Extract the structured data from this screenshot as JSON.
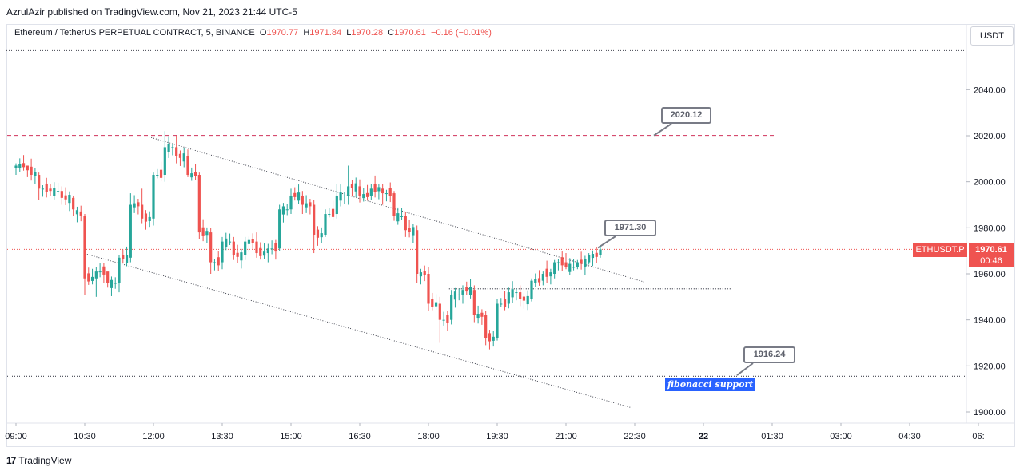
{
  "header": {
    "published_line": "AzrulAzir published on TradingView.com, Nov 21, 2023 21:44 UTC-5"
  },
  "legend": {
    "symbol": "Ethereum / TetherUS PERPETUAL CONTRACT, 5, BINANCE",
    "open_label": "O",
    "open": "1970.77",
    "high_label": "H",
    "high": "1971.84",
    "low_label": "L",
    "low": "1970.28",
    "close_label": "C",
    "close": "1970.61",
    "change": "−0.16 (−0.01%)"
  },
  "currency": "USDT",
  "price_tag": {
    "symbol": "ETHUSDT.P",
    "price": "1970.61",
    "timer": "00:46"
  },
  "annotations": {
    "callout_top": "2020.12",
    "callout_mid": "1971.30",
    "callout_bottom": "1916.24",
    "fib_label": "fibonacci support"
  },
  "footer": {
    "brand": "TradingView",
    "logo_glyph": "17"
  },
  "colors": {
    "up": "#26a69a",
    "down": "#ef5350",
    "resistance": "#d0335b",
    "trend": "#434651",
    "fib_bg": "#2962ff"
  },
  "chart_data": {
    "type": "candlestick",
    "yticks": [
      2040,
      2020,
      2000,
      1980,
      1960,
      1940,
      1920,
      1900
    ],
    "ylim": [
      1896,
      2058
    ],
    "xticks": [
      "09:00",
      "10:30",
      "12:00",
      "13:30",
      "15:00",
      "16:30",
      "18:00",
      "19:30",
      "21:00",
      "22:30",
      "22",
      "01:30",
      "03:00",
      "04:30",
      "06:"
    ],
    "x_range_hours": [
      9,
      30.5
    ],
    "last_price": 1970.61,
    "horizontal_lines": [
      {
        "name": "resistance",
        "value": 2020.12,
        "style": "dashed"
      },
      {
        "name": "current",
        "value": 1970.61,
        "style": "dotted"
      },
      {
        "name": "top",
        "value": 2057,
        "style": "dotted"
      },
      {
        "name": "fibonacci support",
        "value": 1915.5,
        "style": "dotted"
      },
      {
        "name": "mid support",
        "value": 1953.5,
        "style": "dotted"
      }
    ],
    "trendlines": [
      {
        "from": [
          11.9,
          2019.5
        ],
        "to": [
          22.7,
          1956.5
        ]
      },
      {
        "from": [
          10.55,
          1968.5
        ],
        "to": [
          22.4,
          1902
        ]
      }
    ],
    "candles": [
      [
        9.0,
        2006,
        2008,
        2003,
        2007
      ],
      [
        9.25,
        2007,
        2006,
        2002,
        2005
      ],
      [
        9.5,
        2003,
        2004,
        1992,
        1997
      ],
      [
        9.75,
        1997,
        1999,
        1994,
        1996
      ],
      [
        10.0,
        1996,
        1998,
        1990,
        1993
      ],
      [
        10.25,
        1993,
        1994,
        1985,
        1988
      ],
      [
        10.5,
        1985,
        1986,
        1951,
        1958
      ],
      [
        10.75,
        1958,
        1963,
        1950,
        1961
      ],
      [
        11.0,
        1961,
        1960,
        1954,
        1956
      ],
      [
        11.25,
        1956,
        1968,
        1952,
        1967
      ],
      [
        11.5,
        1967,
        1995,
        1965,
        1990
      ],
      [
        11.75,
        1990,
        1997,
        1982,
        1984
      ],
      [
        12.0,
        1984,
        2004,
        1981,
        2003
      ],
      [
        12.25,
        2003,
        2022,
        2000,
        2015
      ],
      [
        12.5,
        2015,
        2020,
        2008,
        2011
      ],
      [
        12.75,
        2011,
        2014,
        2002,
        2003
      ],
      [
        13.0,
        2003,
        2004,
        1975,
        1978
      ],
      [
        13.25,
        1978,
        1980,
        1960,
        1965
      ],
      [
        13.5,
        1965,
        1976,
        1962,
        1974
      ],
      [
        13.75,
        1974,
        1976,
        1966,
        1968
      ],
      [
        14.0,
        1968,
        1976,
        1966,
        1974
      ],
      [
        14.25,
        1974,
        1978,
        1967,
        1969
      ],
      [
        14.5,
        1969,
        1973,
        1965,
        1971
      ],
      [
        14.75,
        1971,
        1990,
        1970,
        1988
      ],
      [
        15.0,
        1988,
        1997,
        1986,
        1994
      ],
      [
        15.25,
        1994,
        1996,
        1986,
        1990
      ],
      [
        15.5,
        1990,
        1992,
        1969,
        1977
      ],
      [
        15.75,
        1977,
        1988,
        1976,
        1986
      ],
      [
        16.0,
        1986,
        1999,
        1984,
        1994
      ],
      [
        16.25,
        1994,
        2007,
        1990,
        1998
      ],
      [
        16.5,
        1998,
        2001,
        1991,
        1994
      ],
      [
        16.75,
        1994,
        1999,
        1992,
        1997
      ],
      [
        17.0,
        1997,
        1999,
        1990,
        1995
      ],
      [
        17.25,
        1995,
        1996,
        1983,
        1985
      ],
      [
        17.5,
        1985,
        1987,
        1976,
        1979
      ],
      [
        17.75,
        1979,
        1981,
        1956,
        1960
      ],
      [
        18.0,
        1960,
        1963,
        1944,
        1947
      ],
      [
        18.25,
        1947,
        1950,
        1930,
        1940
      ],
      [
        18.5,
        1940,
        1953,
        1938,
        1951
      ],
      [
        18.75,
        1951,
        1955,
        1947,
        1953
      ],
      [
        19.0,
        1953,
        1955,
        1939,
        1942
      ],
      [
        19.25,
        1942,
        1944,
        1929,
        1932
      ],
      [
        19.5,
        1932,
        1949,
        1931,
        1947
      ],
      [
        19.75,
        1947,
        1954,
        1945,
        1952
      ],
      [
        20.0,
        1952,
        1955,
        1946,
        1949
      ],
      [
        20.25,
        1949,
        1958,
        1948,
        1957
      ],
      [
        20.5,
        1957,
        1961,
        1955,
        1960
      ],
      [
        20.75,
        1960,
        1966,
        1958,
        1965
      ],
      [
        21.0,
        1965,
        1969,
        1962,
        1963
      ],
      [
        21.25,
        1963,
        1966,
        1962,
        1965
      ],
      [
        21.5,
        1965,
        1969,
        1964,
        1968
      ],
      [
        21.75,
        1968,
        1972,
        1967,
        1970.61
      ]
    ]
  }
}
